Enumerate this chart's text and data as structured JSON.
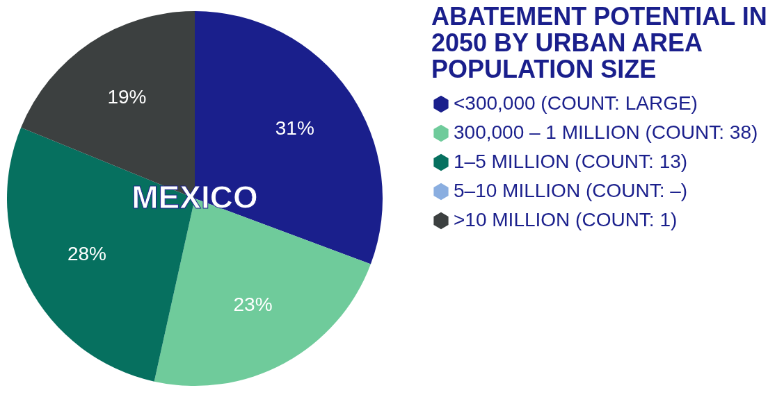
{
  "chart_data": {
    "type": "pie",
    "legend_title": "ABATEMENT POTENTIAL IN 2050 BY URBAN AREA POPULATION SIZE",
    "categories": [
      "<300,000 (COUNT: LARGE)",
      "300,000 – 1 MILLION (COUNT: 38)",
      "1–5 MILLION (COUNT: 13)",
      "5–10 MILLION (COUNT: –)",
      ">10 MILLION (COUNT: 1)"
    ],
    "values": [
      31,
      23,
      28,
      null,
      19
    ],
    "value_labels": [
      "31%",
      "23%",
      "28%",
      null,
      "19%"
    ],
    "colors": [
      "#1a1f8c",
      "#6fcb9b",
      "#06705f",
      "#8aaee0",
      "#3c4040"
    ],
    "annotations": [
      "MEXICO"
    ],
    "legend": "right"
  }
}
